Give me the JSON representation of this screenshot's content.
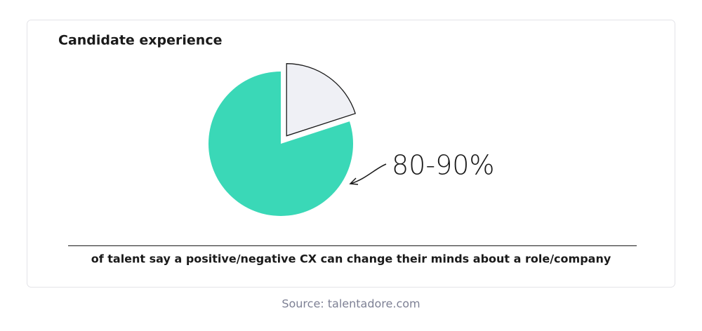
{
  "chart_data": {
    "type": "pie",
    "title": "Candidate experience",
    "values": [
      20,
      80
    ],
    "colors": [
      "#eff0f5",
      "#3ad8b7"
    ],
    "explode": [
      true,
      false
    ],
    "annotation": "80-90%",
    "caption": "of talent say a positive/negative CX can change their minds about a role/company",
    "source": "Source: talentadore.com"
  }
}
